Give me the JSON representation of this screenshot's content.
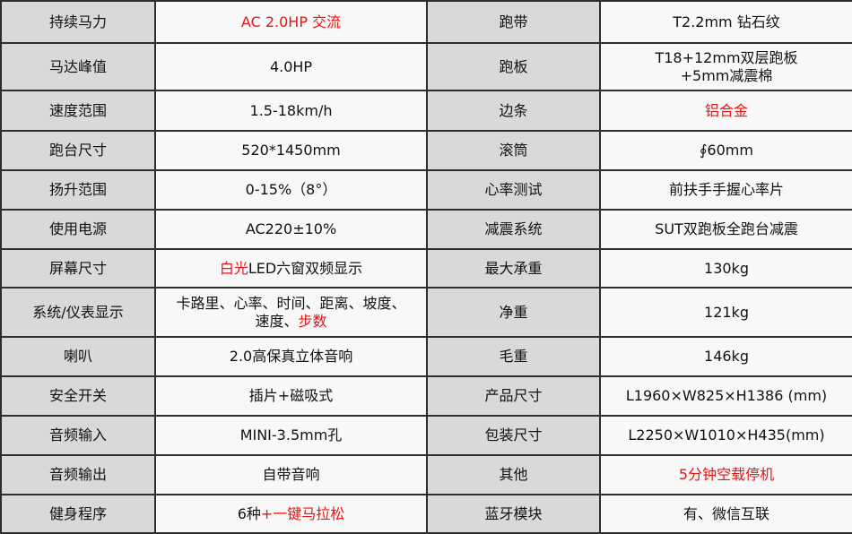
{
  "accent_color": "#ee1111",
  "rows": [
    [
      [
        {
          "t": "持续马力"
        }
      ],
      [
        {
          "t": "AC 2.0HP  交流",
          "red": true
        }
      ],
      [
        {
          "t": "跑带"
        }
      ],
      [
        {
          "t": "T2.2mm 钻石纹"
        }
      ]
    ],
    [
      [
        {
          "t": "马达峰值"
        }
      ],
      [
        {
          "t": "4.0HP"
        }
      ],
      [
        {
          "t": "跑板"
        }
      ],
      [
        {
          "t": "T18+12mm双层跑板"
        },
        {
          "t": "+5mm减震棉",
          "br": true
        }
      ]
    ],
    [
      [
        {
          "t": "速度范围"
        }
      ],
      [
        {
          "t": "1.5-18km/h"
        }
      ],
      [
        {
          "t": "边条"
        }
      ],
      [
        {
          "t": "铝合金",
          "red": true
        }
      ]
    ],
    [
      [
        {
          "t": "跑台尺寸"
        }
      ],
      [
        {
          "t": "520*1450mm"
        }
      ],
      [
        {
          "t": "滚筒"
        }
      ],
      [
        {
          "t": "∮60mm"
        }
      ]
    ],
    [
      [
        {
          "t": "扬升范围"
        }
      ],
      [
        {
          "t": "0-15%（8°）"
        }
      ],
      [
        {
          "t": "心率测试"
        }
      ],
      [
        {
          "t": "前扶手手握心率片"
        }
      ]
    ],
    [
      [
        {
          "t": "使用电源"
        }
      ],
      [
        {
          "t": "AC220±10%"
        }
      ],
      [
        {
          "t": "减震系统"
        }
      ],
      [
        {
          "t": "SUT双跑板全跑台减震"
        }
      ]
    ],
    [
      [
        {
          "t": "屏幕尺寸"
        }
      ],
      [
        {
          "t": "白光",
          "red": true
        },
        {
          "t": "LED六窗双频显示"
        }
      ],
      [
        {
          "t": "最大承重"
        }
      ],
      [
        {
          "t": "130kg"
        }
      ]
    ],
    [
      [
        {
          "t": "系统/仪表显示"
        }
      ],
      [
        {
          "t": "卡路里、心率、时间、距离、坡度、"
        },
        {
          "t": "速度、",
          "br": true
        },
        {
          "t": "步数",
          "red": true
        }
      ],
      [
        {
          "t": "净重"
        }
      ],
      [
        {
          "t": "121kg"
        }
      ]
    ],
    [
      [
        {
          "t": "喇叭"
        }
      ],
      [
        {
          "t": "2.0高保真立体音响"
        }
      ],
      [
        {
          "t": "毛重"
        }
      ],
      [
        {
          "t": "146kg"
        }
      ]
    ],
    [
      [
        {
          "t": "安全开关"
        }
      ],
      [
        {
          "t": "插片+磁吸式"
        }
      ],
      [
        {
          "t": "产品尺寸"
        }
      ],
      [
        {
          "t": "L1960×W825×H1386 (mm)"
        }
      ]
    ],
    [
      [
        {
          "t": "音频输入"
        }
      ],
      [
        {
          "t": "MINI-3.5mm孔"
        }
      ],
      [
        {
          "t": "包装尺寸"
        }
      ],
      [
        {
          "t": "L2250×W1010×H435(mm)"
        }
      ]
    ],
    [
      [
        {
          "t": "音频输出"
        }
      ],
      [
        {
          "t": "自带音响"
        }
      ],
      [
        {
          "t": "其他"
        }
      ],
      [
        {
          "t": "5分钟空载停机",
          "red": true
        }
      ]
    ],
    [
      [
        {
          "t": "健身程序"
        }
      ],
      [
        {
          "t": "6种"
        },
        {
          "t": "+一键马拉松",
          "red": true
        }
      ],
      [
        {
          "t": "蓝牙模块"
        }
      ],
      [
        {
          "t": "有、微信互联"
        }
      ]
    ]
  ]
}
